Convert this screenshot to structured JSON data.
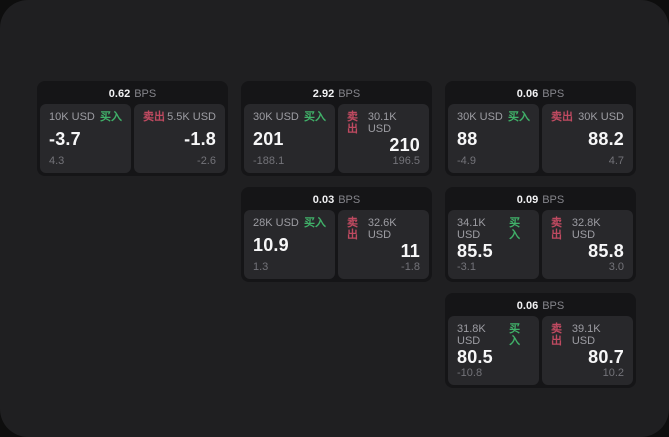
{
  "labels": {
    "buy": "买入",
    "sell": "卖出",
    "bps_unit": "BPS"
  },
  "colors": {
    "buy_green": "#40b169",
    "sell_red": "#c04a61",
    "page_bg": "#1f1f21",
    "card_bg": "#151517",
    "panel_bg": "#28282b",
    "primary_text": "#f7f7f8",
    "muted_text": "#9d9da3",
    "dim_text": "#737379"
  },
  "cards": [
    {
      "bps": "0.62",
      "row": 1,
      "col": 1,
      "buy": {
        "notional": "10K USD",
        "price": "-3.7",
        "delta": "4.3"
      },
      "sell": {
        "notional": "5.5K USD",
        "price": "-1.8",
        "delta": "-2.6"
      }
    },
    {
      "bps": "2.92",
      "row": 1,
      "col": 2,
      "buy": {
        "notional": "30K USD",
        "price": "201",
        "delta": "-188.1"
      },
      "sell": {
        "notional": "30.1K USD",
        "price": "210",
        "delta": "196.5"
      }
    },
    {
      "bps": "0.06",
      "row": 1,
      "col": 3,
      "buy": {
        "notional": "30K USD",
        "price": "88",
        "delta": "-4.9"
      },
      "sell": {
        "notional": "30K USD",
        "price": "88.2",
        "delta": "4.7"
      }
    },
    {
      "bps": "0.03",
      "row": 2,
      "col": 2,
      "buy": {
        "notional": "28K USD",
        "price": "10.9",
        "delta": "1.3"
      },
      "sell": {
        "notional": "32.6K USD",
        "price": "11",
        "delta": "-1.8"
      }
    },
    {
      "bps": "0.09",
      "row": 2,
      "col": 3,
      "buy": {
        "notional": "34.1K USD",
        "price": "85.5",
        "delta": "-3.1"
      },
      "sell": {
        "notional": "32.8K USD",
        "price": "85.8",
        "delta": "3.0"
      }
    },
    {
      "bps": "0.06",
      "row": 3,
      "col": 3,
      "buy": {
        "notional": "31.8K USD",
        "price": "80.5",
        "delta": "-10.8"
      },
      "sell": {
        "notional": "39.1K USD",
        "price": "80.7",
        "delta": "10.2"
      }
    }
  ]
}
